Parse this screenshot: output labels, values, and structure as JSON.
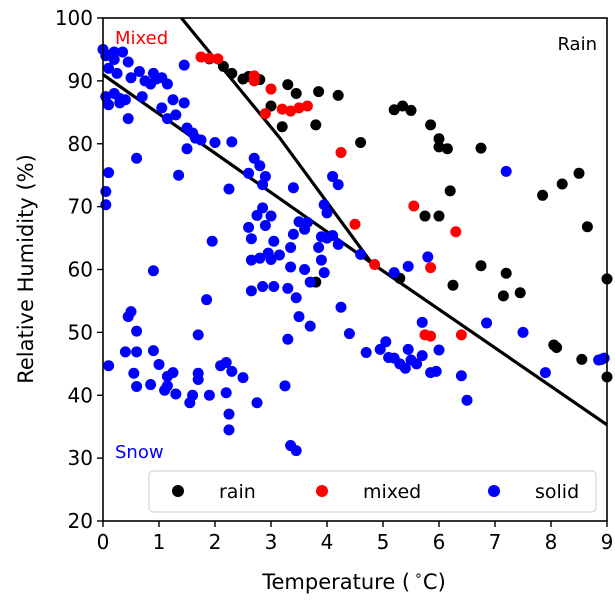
{
  "chart_data": {
    "type": "scatter",
    "xlabel": "Temperature ( $^\\circ$C)",
    "xlabel_parts": {
      "pre": "Temperature (",
      "sup": "∘",
      "post": "C)"
    },
    "ylabel": "Relative Humidity (%)",
    "xlim": [
      0,
      9
    ],
    "ylim": [
      20,
      100
    ],
    "x_ticks": [
      "0",
      "1",
      "2",
      "3",
      "4",
      "5",
      "6",
      "7",
      "8",
      "9"
    ],
    "y_ticks": [
      "20",
      "30",
      "40",
      "50",
      "60",
      "70",
      "80",
      "90",
      "100"
    ],
    "region_labels": {
      "mixed": {
        "text": "Mixed",
        "color": "#ff0000"
      },
      "rain": {
        "text": "Rain",
        "color": "#000000"
      },
      "snow": {
        "text": "Snow",
        "color": "#0000ff"
      }
    },
    "legend": {
      "placement": "bottom-right",
      "entries": [
        {
          "label": "rain",
          "color": "#000000"
        },
        {
          "label": "mixed",
          "color": "#ff0000"
        },
        {
          "label": "solid",
          "color": "#0000ff"
        }
      ]
    },
    "boundary_lines": [
      {
        "points": [
          [
            0,
            91
          ],
          [
            4.8,
            61
          ],
          [
            9,
            35.3
          ]
        ]
      },
      {
        "points": [
          [
            1.4,
            100
          ],
          [
            3.15,
            81
          ],
          [
            4.8,
            61
          ]
        ]
      }
    ],
    "series": [
      {
        "name": "rain",
        "color": "#000000",
        "points": [
          [
            1.9,
            93.5
          ],
          [
            2.15,
            92.3
          ],
          [
            2.3,
            91.2
          ],
          [
            2.5,
            90.3
          ],
          [
            2.6,
            90.7
          ],
          [
            2.8,
            90.2
          ],
          [
            3.0,
            86.0
          ],
          [
            3.2,
            82.7
          ],
          [
            3.3,
            89.4
          ],
          [
            3.45,
            88.0
          ],
          [
            3.8,
            83.0
          ],
          [
            3.85,
            88.3
          ],
          [
            4.2,
            87.7
          ],
          [
            4.6,
            80.2
          ],
          [
            5.2,
            85.4
          ],
          [
            5.35,
            86.0
          ],
          [
            5.5,
            85.3
          ],
          [
            5.85,
            83.0
          ],
          [
            6.0,
            80.8
          ],
          [
            6.0,
            79.5
          ],
          [
            6.15,
            79.2
          ],
          [
            5.75,
            68.5
          ],
          [
            6.0,
            68.5
          ],
          [
            6.2,
            72.5
          ],
          [
            6.25,
            57.5
          ],
          [
            6.75,
            79.3
          ],
          [
            6.75,
            60.6
          ],
          [
            7.15,
            55.8
          ],
          [
            7.2,
            59.4
          ],
          [
            7.45,
            56.3
          ],
          [
            7.85,
            71.8
          ],
          [
            8.2,
            73.6
          ],
          [
            8.5,
            75.3
          ],
          [
            8.05,
            48.0
          ],
          [
            8.1,
            47.6
          ],
          [
            8.55,
            45.7
          ],
          [
            8.65,
            66.8
          ],
          [
            8.9,
            45.7
          ],
          [
            9.0,
            58.5
          ],
          [
            9.0,
            42.9
          ],
          [
            3.8,
            58.0
          ],
          [
            5.3,
            58.6
          ]
        ]
      },
      {
        "name": "mixed",
        "color": "#ff0000",
        "points": [
          [
            1.75,
            93.8
          ],
          [
            1.9,
            93.6
          ],
          [
            2.05,
            93.5
          ],
          [
            2.7,
            90.8
          ],
          [
            2.7,
            90.0
          ],
          [
            2.9,
            84.8
          ],
          [
            3.0,
            88.7
          ],
          [
            3.2,
            85.5
          ],
          [
            3.35,
            85.2
          ],
          [
            3.5,
            85.7
          ],
          [
            3.65,
            86.0
          ],
          [
            4.25,
            78.6
          ],
          [
            4.5,
            67.2
          ],
          [
            4.85,
            60.8
          ],
          [
            5.55,
            70.1
          ],
          [
            5.75,
            49.6
          ],
          [
            5.85,
            49.4
          ],
          [
            5.85,
            60.3
          ],
          [
            6.3,
            66.0
          ],
          [
            6.4,
            49.6
          ]
        ]
      },
      {
        "name": "solid",
        "color": "#0000ff",
        "points": [
          [
            0.0,
            95.0
          ],
          [
            0.05,
            94.0
          ],
          [
            0.1,
            92.0
          ],
          [
            0.15,
            94.2
          ],
          [
            0.2,
            93.4
          ],
          [
            0.2,
            94.6
          ],
          [
            0.35,
            94.6
          ],
          [
            0.45,
            93.0
          ],
          [
            0.05,
            87.5
          ],
          [
            0.1,
            86.2
          ],
          [
            0.2,
            88.0
          ],
          [
            0.3,
            87.2
          ],
          [
            0.3,
            86.5
          ],
          [
            0.4,
            87.0
          ],
          [
            0.25,
            91.2
          ],
          [
            0.5,
            90.5
          ],
          [
            0.65,
            91.5
          ],
          [
            0.7,
            87.5
          ],
          [
            0.75,
            90.0
          ],
          [
            0.85,
            89.5
          ],
          [
            0.9,
            91.2
          ],
          [
            0.95,
            90.3
          ],
          [
            1.05,
            90.5
          ],
          [
            1.15,
            89.5
          ],
          [
            1.25,
            87.0
          ],
          [
            1.45,
            86.5
          ],
          [
            1.05,
            85.7
          ],
          [
            1.3,
            84.6
          ],
          [
            1.15,
            84.0
          ],
          [
            1.45,
            92.5
          ],
          [
            1.5,
            82.5
          ],
          [
            1.5,
            79.2
          ],
          [
            1.6,
            81.7
          ],
          [
            1.65,
            80.9
          ],
          [
            1.75,
            80.6
          ],
          [
            2.0,
            80.2
          ],
          [
            2.3,
            80.3
          ],
          [
            1.35,
            75.0
          ],
          [
            0.6,
            77.7
          ],
          [
            0.45,
            84.0
          ],
          [
            0.9,
            59.8
          ],
          [
            1.7,
            49.6
          ],
          [
            1.95,
            64.5
          ],
          [
            1.85,
            55.2
          ],
          [
            2.25,
            72.8
          ],
          [
            2.6,
            75.3
          ],
          [
            2.7,
            77.7
          ],
          [
            2.8,
            76.5
          ],
          [
            2.85,
            73.5
          ],
          [
            2.9,
            74.8
          ],
          [
            2.6,
            66.7
          ],
          [
            2.65,
            64.9
          ],
          [
            2.75,
            68.6
          ],
          [
            2.85,
            69.8
          ],
          [
            2.9,
            67.0
          ],
          [
            3.0,
            68.5
          ],
          [
            3.05,
            64.5
          ],
          [
            2.95,
            62.6
          ],
          [
            2.65,
            61.5
          ],
          [
            2.8,
            61.8
          ],
          [
            3.0,
            61.6
          ],
          [
            2.65,
            56.6
          ],
          [
            2.85,
            57.3
          ],
          [
            3.05,
            57.3
          ],
          [
            3.15,
            62.3
          ],
          [
            3.35,
            63.5
          ],
          [
            3.4,
            65.6
          ],
          [
            3.5,
            67.6
          ],
          [
            3.6,
            66.4
          ],
          [
            3.65,
            67.5
          ],
          [
            3.35,
            60.4
          ],
          [
            3.6,
            60.0
          ],
          [
            3.7,
            58.0
          ],
          [
            3.85,
            63.5
          ],
          [
            3.9,
            61.5
          ],
          [
            3.95,
            59.5
          ],
          [
            3.9,
            65.2
          ],
          [
            4.0,
            65.0
          ],
          [
            4.1,
            65.4
          ],
          [
            4.2,
            64.0
          ],
          [
            4.1,
            74.8
          ],
          [
            4.2,
            73.5
          ],
          [
            3.95,
            70.3
          ],
          [
            4.0,
            69.0
          ],
          [
            3.4,
            73.0
          ],
          [
            3.3,
            57.0
          ],
          [
            3.45,
            55.5
          ],
          [
            3.5,
            52.5
          ],
          [
            3.7,
            51.0
          ],
          [
            3.3,
            48.9
          ],
          [
            3.25,
            41.5
          ],
          [
            3.35,
            32.0
          ],
          [
            3.45,
            31.2
          ],
          [
            2.75,
            38.8
          ],
          [
            2.5,
            42.8
          ],
          [
            2.2,
            45.2
          ],
          [
            2.1,
            44.7
          ],
          [
            2.3,
            43.8
          ],
          [
            2.2,
            40.4
          ],
          [
            2.25,
            37.0
          ],
          [
            2.25,
            34.5
          ],
          [
            1.9,
            40.0
          ],
          [
            1.7,
            43.5
          ],
          [
            1.7,
            42.5
          ],
          [
            1.6,
            40.0
          ],
          [
            1.55,
            38.8
          ],
          [
            1.3,
            40.2
          ],
          [
            1.15,
            41.5
          ],
          [
            1.1,
            40.8
          ],
          [
            1.15,
            43.0
          ],
          [
            1.25,
            43.6
          ],
          [
            0.85,
            41.7
          ],
          [
            0.55,
            43.5
          ],
          [
            0.4,
            46.9
          ],
          [
            0.6,
            46.9
          ],
          [
            0.6,
            41.4
          ],
          [
            0.45,
            52.5
          ],
          [
            0.5,
            53.3
          ],
          [
            0.6,
            50.2
          ],
          [
            0.1,
            44.7
          ],
          [
            0.9,
            47.1
          ],
          [
            1.0,
            44.9
          ],
          [
            4.25,
            54.0
          ],
          [
            4.4,
            49.8
          ],
          [
            4.7,
            46.8
          ],
          [
            4.95,
            47.3
          ],
          [
            5.05,
            48.5
          ],
          [
            5.1,
            46.0
          ],
          [
            5.2,
            45.9
          ],
          [
            5.3,
            45.0
          ],
          [
            5.4,
            44.3
          ],
          [
            5.45,
            47.3
          ],
          [
            5.5,
            45.6
          ],
          [
            5.6,
            45.0
          ],
          [
            5.7,
            46.3
          ],
          [
            5.85,
            43.6
          ],
          [
            5.95,
            43.8
          ],
          [
            6.0,
            47.2
          ],
          [
            5.8,
            62.0
          ],
          [
            5.7,
            51.6
          ],
          [
            6.4,
            43.1
          ],
          [
            6.5,
            39.2
          ],
          [
            6.85,
            51.5
          ],
          [
            7.2,
            75.6
          ],
          [
            7.5,
            50.0
          ],
          [
            7.9,
            43.6
          ],
          [
            8.85,
            45.6
          ],
          [
            8.95,
            45.9
          ],
          [
            5.45,
            60.5
          ],
          [
            5.2,
            59.5
          ],
          [
            4.6,
            62.4
          ],
          [
            0.05,
            72.4
          ],
          [
            0.05,
            70.3
          ],
          [
            0.1,
            75.4
          ]
        ]
      }
    ]
  }
}
